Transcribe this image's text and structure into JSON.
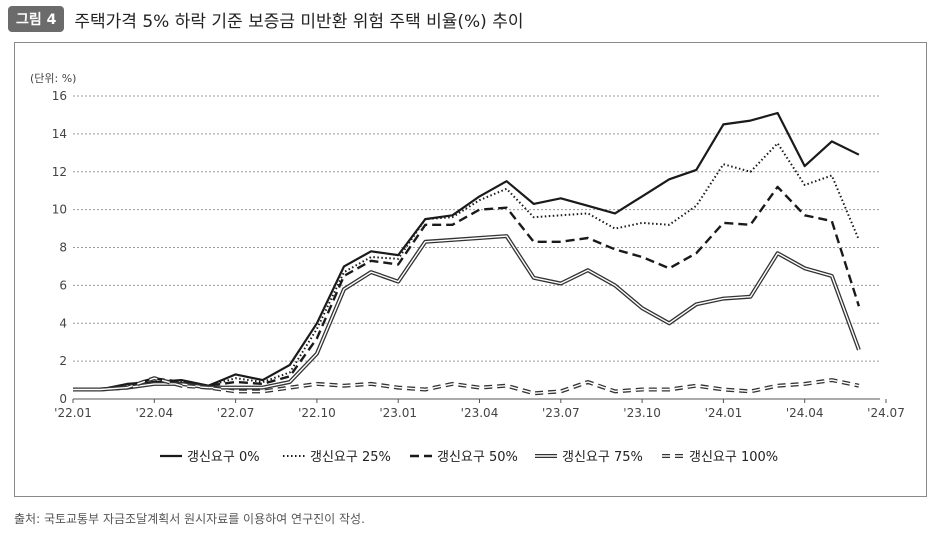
{
  "header": {
    "badge": "그림 4",
    "title": "주택가격 5% 하락 기준 보증금 미반환 위험 주택 비율(%) 추이"
  },
  "source_note": "출처: 국토교통부 자금조달계획서 원시자료를 이용하여 연구진이 작성.",
  "chart_data": {
    "type": "line",
    "unit_label": "(단위: %)",
    "ylim": [
      0,
      16
    ],
    "yticks": [
      0,
      2,
      4,
      6,
      8,
      10,
      12,
      14,
      16
    ],
    "grid": "horizontal dotted",
    "legend_position": "bottom",
    "x": [
      "'22.01",
      "'22.02",
      "'22.03",
      "'22.04",
      "'22.05",
      "'22.06",
      "'22.07",
      "'22.08",
      "'22.09",
      "'22.10",
      "'22.11",
      "'22.12",
      "'23.01",
      "'23.02",
      "'23.03",
      "'23.04",
      "'23.05",
      "'23.06",
      "'23.07",
      "'23.08",
      "'23.09",
      "'23.10",
      "'23.11",
      "'23.12",
      "'24.01",
      "'24.02",
      "'24.03",
      "'24.04",
      "'24.05",
      "'24.06"
    ],
    "xtick_labels": [
      "'22.01",
      "'22.04",
      "'22.07",
      "'22.10",
      "'23.01",
      "'23.04",
      "'23.07",
      "'23.10",
      "'24.01",
      "'24.04",
      "'24.07"
    ],
    "series": [
      {
        "name": "갱신요구 0%",
        "style": "solid",
        "values": [
          0.5,
          0.5,
          0.8,
          0.9,
          1.0,
          0.7,
          1.3,
          1.0,
          1.8,
          4.0,
          7.0,
          7.8,
          7.6,
          9.5,
          9.7,
          10.7,
          11.5,
          10.3,
          10.6,
          10.2,
          9.8,
          10.7,
          11.6,
          12.1,
          14.5,
          14.7,
          15.1,
          12.3,
          13.6,
          12.9
        ]
      },
      {
        "name": "갱신요구 25%",
        "style": "dotted",
        "values": [
          0.5,
          0.5,
          0.7,
          0.9,
          0.9,
          0.7,
          1.1,
          0.9,
          1.4,
          3.7,
          6.7,
          7.5,
          7.4,
          9.5,
          9.6,
          10.5,
          11.1,
          9.6,
          9.7,
          9.8,
          9.0,
          9.3,
          9.2,
          10.2,
          12.4,
          12.0,
          13.5,
          11.3,
          11.8,
          8.4
        ]
      },
      {
        "name": "갱신요구 50%",
        "style": "dashed",
        "values": [
          0.5,
          0.5,
          0.7,
          1.1,
          0.9,
          0.7,
          0.9,
          0.8,
          1.2,
          3.2,
          6.5,
          7.3,
          7.1,
          9.2,
          9.2,
          10.0,
          10.1,
          8.3,
          8.3,
          8.5,
          7.9,
          7.5,
          6.9,
          7.7,
          9.3,
          9.2,
          11.2,
          9.7,
          9.4,
          4.9
        ]
      },
      {
        "name": "갱신요구 75%",
        "style": "double",
        "values": [
          0.5,
          0.5,
          0.6,
          0.8,
          0.8,
          0.6,
          0.6,
          0.6,
          0.9,
          2.4,
          5.8,
          6.7,
          6.2,
          8.3,
          8.4,
          8.5,
          8.6,
          6.4,
          6.1,
          6.8,
          6.0,
          4.8,
          4.0,
          5.0,
          5.3,
          5.4,
          7.7,
          6.9,
          6.5,
          2.6
        ]
      },
      {
        "name": "갱신요구 100%",
        "style": "double-dashed",
        "values": [
          0.5,
          0.5,
          0.6,
          1.1,
          0.7,
          0.6,
          0.4,
          0.4,
          0.6,
          0.8,
          0.7,
          0.8,
          0.6,
          0.5,
          0.8,
          0.6,
          0.7,
          0.3,
          0.4,
          0.9,
          0.4,
          0.5,
          0.5,
          0.7,
          0.5,
          0.4,
          0.7,
          0.8,
          1.0,
          0.7
        ]
      }
    ]
  }
}
